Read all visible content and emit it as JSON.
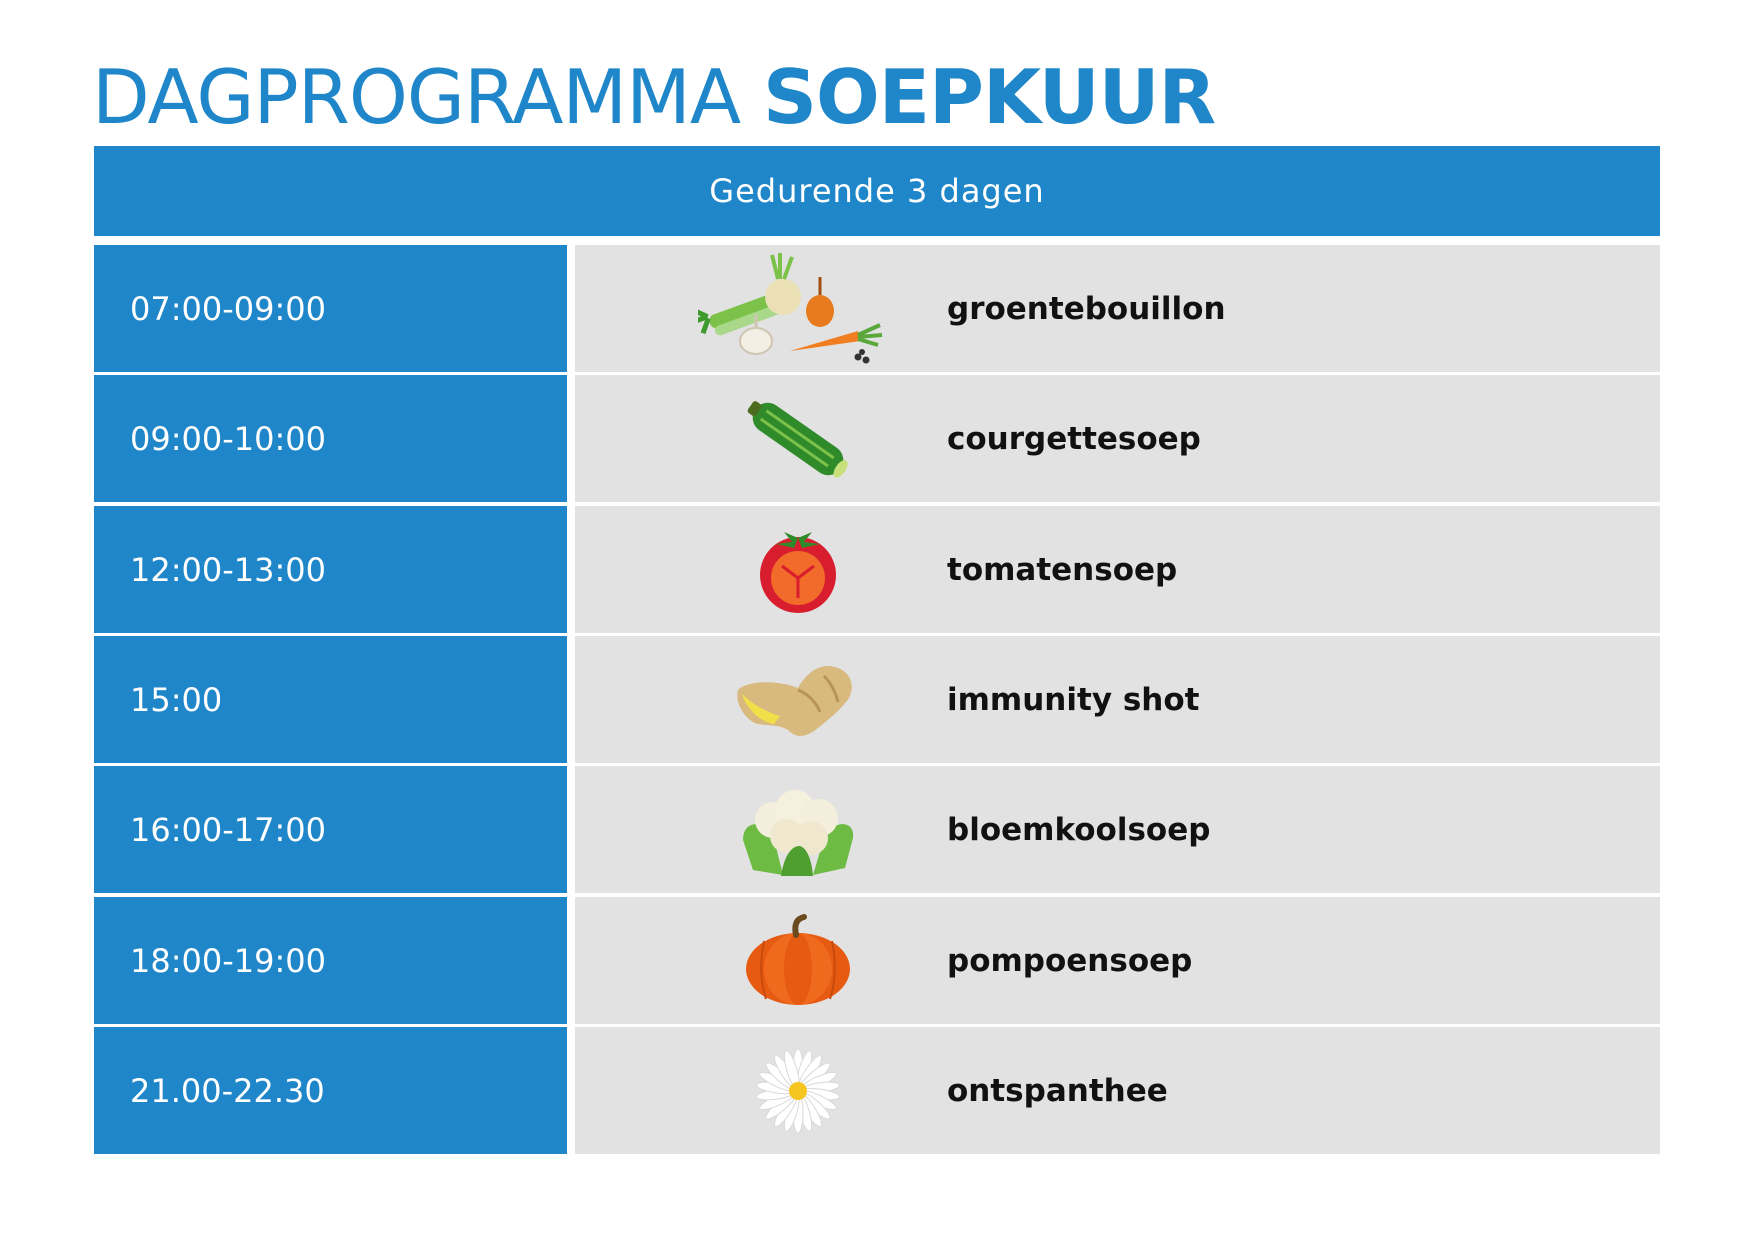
{
  "title": {
    "part1": "DAGPROGRAMMA",
    "part2": "SOEPKUUR"
  },
  "header": {
    "text": "Gedurende 3 dagen"
  },
  "rows": [
    {
      "time": "07:00-09:00",
      "item": "groentebouillon",
      "icon": "vegetables-icon"
    },
    {
      "time": "09:00-10:00",
      "item": "courgettesoep",
      "icon": "zucchini-icon"
    },
    {
      "time": "12:00-13:00",
      "item": "tomatensoep",
      "icon": "tomato-icon"
    },
    {
      "time": "15:00",
      "item": "immunity shot",
      "icon": "ginger-icon"
    },
    {
      "time": "16:00-17:00",
      "item": "bloemkoolsoep",
      "icon": "cauliflower-icon"
    },
    {
      "time": "18:00-19:00",
      "item": "pompoensoep",
      "icon": "pumpkin-icon"
    },
    {
      "time": "21.00-22.30",
      "item": "ontspanthee",
      "icon": "chamomile-flower-icon"
    }
  ],
  "colors": {
    "accent": "#1f87c9",
    "row_bg": "#e2e2e2"
  }
}
